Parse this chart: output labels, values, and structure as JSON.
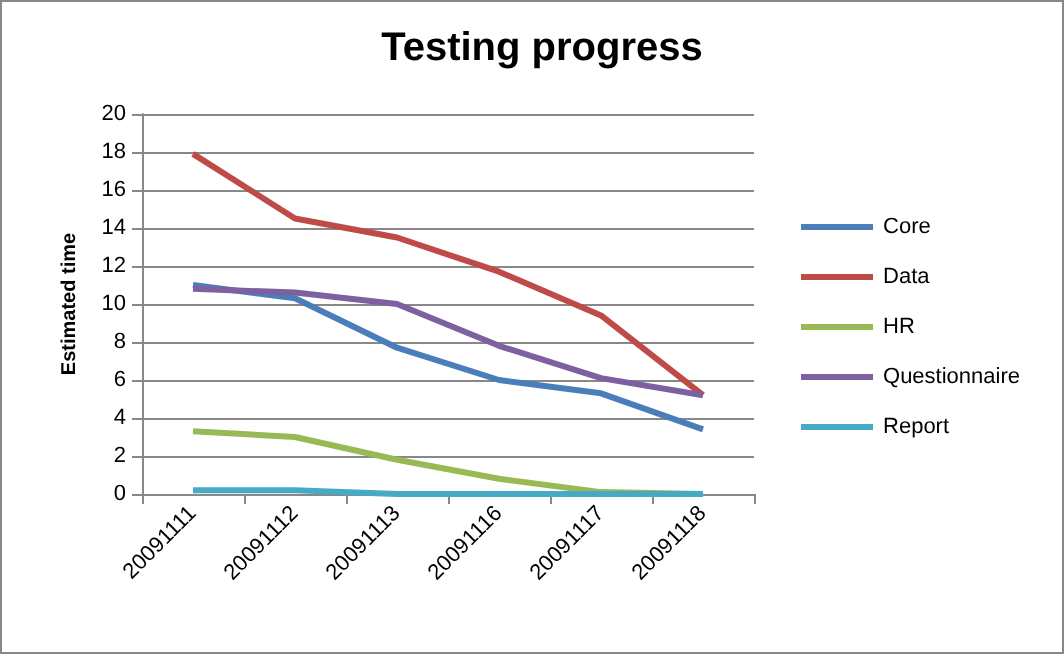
{
  "chart_data": {
    "type": "line",
    "title": "Testing progress",
    "ylabel": "Estimated time",
    "categories": [
      "20091111",
      "20091112",
      "20091113",
      "20091116",
      "20091117",
      "20091118"
    ],
    "series": [
      {
        "name": "Core",
        "color": "#4a7ebb",
        "values": [
          11.0,
          10.3,
          7.7,
          6.0,
          5.3,
          3.4
        ]
      },
      {
        "name": "Data",
        "color": "#be4b48",
        "values": [
          17.9,
          14.5,
          13.5,
          11.7,
          9.4,
          5.2
        ]
      },
      {
        "name": "HR",
        "color": "#98b954",
        "values": [
          3.3,
          3.0,
          1.8,
          0.8,
          0.1,
          0
        ]
      },
      {
        "name": "Questionnaire",
        "color": "#7d60a0",
        "values": [
          10.8,
          10.6,
          10.0,
          7.8,
          6.1,
          5.2
        ]
      },
      {
        "name": "Report",
        "color": "#46aac5",
        "values": [
          0.2,
          0.2,
          0,
          0,
          0,
          0
        ]
      }
    ],
    "ylim": [
      0,
      20
    ],
    "yticks": [
      0,
      2,
      4,
      6,
      8,
      10,
      12,
      14,
      16,
      18,
      20
    ],
    "grid": "y",
    "legend": "right",
    "marker": "none",
    "line_style": "solid"
  }
}
